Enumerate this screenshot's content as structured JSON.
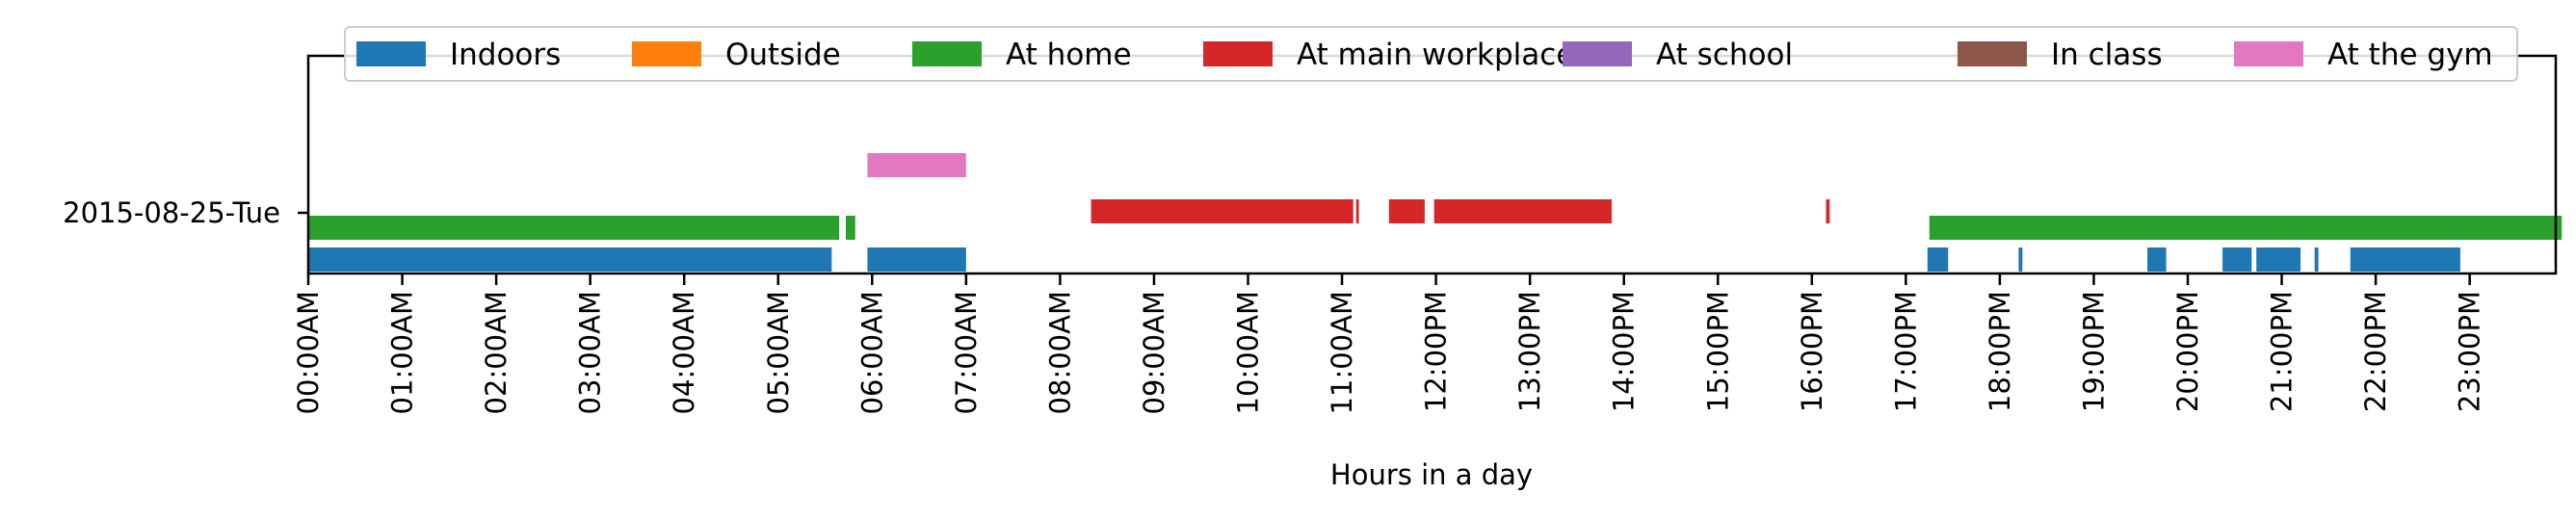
{
  "chart_data": {
    "type": "timeline",
    "xlabel": "Hours in a day",
    "x_ticks": [
      "00:00AM",
      "01:00AM",
      "02:00AM",
      "03:00AM",
      "04:00AM",
      "05:00AM",
      "06:00AM",
      "07:00AM",
      "08:00AM",
      "09:00AM",
      "10:00AM",
      "11:00AM",
      "12:00PM",
      "13:00PM",
      "14:00PM",
      "15:00PM",
      "16:00PM",
      "17:00PM",
      "18:00PM",
      "19:00PM",
      "20:00PM",
      "21:00PM",
      "22:00PM",
      "23:00PM"
    ],
    "xlim": [
      0,
      24
    ],
    "y_category": "2015-08-25-Tue",
    "legend": {
      "placement": "top-center"
    },
    "series": [
      {
        "name": "Indoors",
        "color": "#1f77b4",
        "intervals": [
          [
            0.0,
            5.57
          ],
          [
            5.95,
            7.0
          ],
          [
            17.23,
            17.45
          ],
          [
            18.2,
            18.24
          ],
          [
            19.57,
            19.77
          ],
          [
            20.37,
            20.68
          ],
          [
            20.73,
            21.2
          ],
          [
            21.35,
            21.39
          ],
          [
            21.73,
            22.9
          ]
        ]
      },
      {
        "name": "Outside",
        "color": "#ff7f0e",
        "intervals": []
      },
      {
        "name": "At home",
        "color": "#2ca02c",
        "intervals": [
          [
            0.0,
            5.65
          ],
          [
            5.72,
            5.82
          ],
          [
            17.25,
            23.98
          ]
        ]
      },
      {
        "name": "At main workplace",
        "color": "#d62728",
        "intervals": [
          [
            8.33,
            11.12
          ],
          [
            11.15,
            11.18
          ],
          [
            11.5,
            11.88
          ],
          [
            11.98,
            13.87
          ],
          [
            16.15,
            16.19
          ]
        ]
      },
      {
        "name": "At school",
        "color": "#9467bd",
        "intervals": []
      },
      {
        "name": "In class",
        "color": "#8c564b",
        "intervals": []
      },
      {
        "name": "At the gym",
        "color": "#e377c2",
        "intervals": [
          [
            5.95,
            7.0
          ]
        ]
      }
    ]
  }
}
